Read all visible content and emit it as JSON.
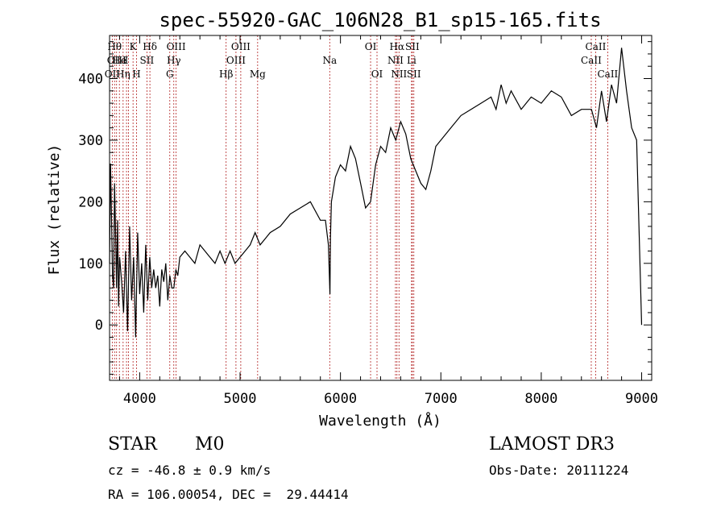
{
  "chart_data": {
    "type": "line",
    "title": "spec-55920-GAC_106N28_B1_sp15-165.fits",
    "xlabel": "Wavelength (Å)",
    "ylabel": "Flux (relative)",
    "xlim": [
      3700,
      9100
    ],
    "ylim": [
      -90,
      470
    ],
    "xticks": [
      4000,
      5000,
      6000,
      7000,
      8000,
      9000
    ],
    "yticks": [
      0,
      100,
      200,
      300,
      400
    ],
    "grid": false,
    "series": [
      {
        "x": [
          3700,
          3710,
          3720,
          3730,
          3740,
          3750,
          3760,
          3770,
          3780,
          3790,
          3800,
          3820,
          3840,
          3860,
          3880,
          3900,
          3920,
          3940,
          3960,
          3980,
          4000,
          4020,
          4040,
          4060,
          4080,
          4100,
          4120,
          4140,
          4160,
          4180,
          4200,
          4220,
          4240,
          4260,
          4280,
          4300,
          4320,
          4340,
          4360,
          4380,
          4400,
          4450,
          4500,
          4550,
          4600,
          4650,
          4700,
          4750,
          4800,
          4850,
          4900,
          4950,
          5000,
          5050,
          5100,
          5150,
          5200,
          5250,
          5300,
          5400,
          5500,
          5600,
          5700,
          5800,
          5850,
          5880,
          5895,
          5900,
          5910,
          5950,
          6000,
          6050,
          6100,
          6150,
          6200,
          6250,
          6300,
          6350,
          6400,
          6450,
          6500,
          6550,
          6600,
          6650,
          6700,
          6750,
          6800,
          6850,
          6900,
          6950,
          7000,
          7100,
          7200,
          7300,
          7400,
          7500,
          7550,
          7600,
          7650,
          7700,
          7800,
          7900,
          8000,
          8100,
          8200,
          8300,
          8400,
          8500,
          8550,
          8600,
          8650,
          8700,
          8750,
          8800,
          8850,
          8900,
          8950,
          9000
        ],
        "y": [
          100,
          262,
          170,
          80,
          60,
          230,
          150,
          60,
          170,
          30,
          110,
          70,
          20,
          120,
          -10,
          160,
          40,
          110,
          -20,
          150,
          50,
          100,
          20,
          130,
          40,
          110,
          60,
          90,
          60,
          80,
          30,
          90,
          70,
          100,
          40,
          80,
          60,
          60,
          90,
          80,
          110,
          120,
          110,
          100,
          130,
          120,
          110,
          100,
          120,
          100,
          120,
          100,
          110,
          120,
          130,
          150,
          130,
          140,
          150,
          160,
          180,
          190,
          200,
          170,
          170,
          130,
          50,
          140,
          200,
          240,
          260,
          250,
          290,
          270,
          230,
          190,
          200,
          260,
          290,
          280,
          320,
          300,
          330,
          310,
          270,
          250,
          230,
          220,
          250,
          290,
          300,
          320,
          340,
          350,
          360,
          370,
          350,
          390,
          360,
          380,
          350,
          370,
          360,
          380,
          370,
          340,
          350,
          350,
          320,
          380,
          330,
          390,
          360,
          450,
          380,
          320,
          300,
          0
        ]
      }
    ],
    "lines": [
      {
        "x": 3727,
        "label": "OII",
        "row": 3
      },
      {
        "x": 3750,
        "label": "Hθ",
        "row": 1
      },
      {
        "x": 3770,
        "label": "OIII",
        "row": 2
      },
      {
        "x": 3798,
        "label": "He",
        "row": 2
      },
      {
        "x": 3835,
        "label": "Hη",
        "row": 3
      },
      {
        "x": 3869,
        "label": "I",
        "row": 2
      },
      {
        "x": 3889,
        "label": "",
        "row": 0
      },
      {
        "x": 3934,
        "label": "K",
        "row": 1
      },
      {
        "x": 3969,
        "label": "H",
        "row": 3
      },
      {
        "x": 4072,
        "label": "SII",
        "row": 2
      },
      {
        "x": 4102,
        "label": "Hδ",
        "row": 1
      },
      {
        "x": 4300,
        "label": "G",
        "row": 3
      },
      {
        "x": 4340,
        "label": "Hγ",
        "row": 2
      },
      {
        "x": 4363,
        "label": "OIII",
        "row": 1
      },
      {
        "x": 4861,
        "label": "Hβ",
        "row": 3
      },
      {
        "x": 4959,
        "label": "OIII",
        "row": 2
      },
      {
        "x": 5007,
        "label": "OIII",
        "row": 1
      },
      {
        "x": 5175,
        "label": "Mg",
        "row": 3
      },
      {
        "x": 5893,
        "label": "Na",
        "row": 2
      },
      {
        "x": 6300,
        "label": "OI",
        "row": 1
      },
      {
        "x": 6364,
        "label": "OI",
        "row": 3
      },
      {
        "x": 6548,
        "label": "NII",
        "row": 2
      },
      {
        "x": 6563,
        "label": "Hα",
        "row": 1
      },
      {
        "x": 6583,
        "label": "NII",
        "row": 3
      },
      {
        "x": 6708,
        "label": "Li",
        "row": 2
      },
      {
        "x": 6716,
        "label": "SII",
        "row": 1
      },
      {
        "x": 6731,
        "label": "SII",
        "row": 3
      },
      {
        "x": 8498,
        "label": "CaII",
        "row": 2
      },
      {
        "x": 8542,
        "label": "CaII",
        "row": 1
      },
      {
        "x": 8662,
        "label": "CaII",
        "row": 3
      }
    ]
  },
  "info": {
    "class": "STAR",
    "subclass": "M0",
    "survey": "LAMOST DR3",
    "cz": "cz = -46.8 ± 0.9 km/s",
    "obs_date": "Obs-Date: 20111224",
    "radec": "RA = 106.00054, DEC =  29.44414"
  },
  "colors": {
    "spectrum": "#000000",
    "line_markers": "#b22222",
    "axes": "#000000"
  }
}
